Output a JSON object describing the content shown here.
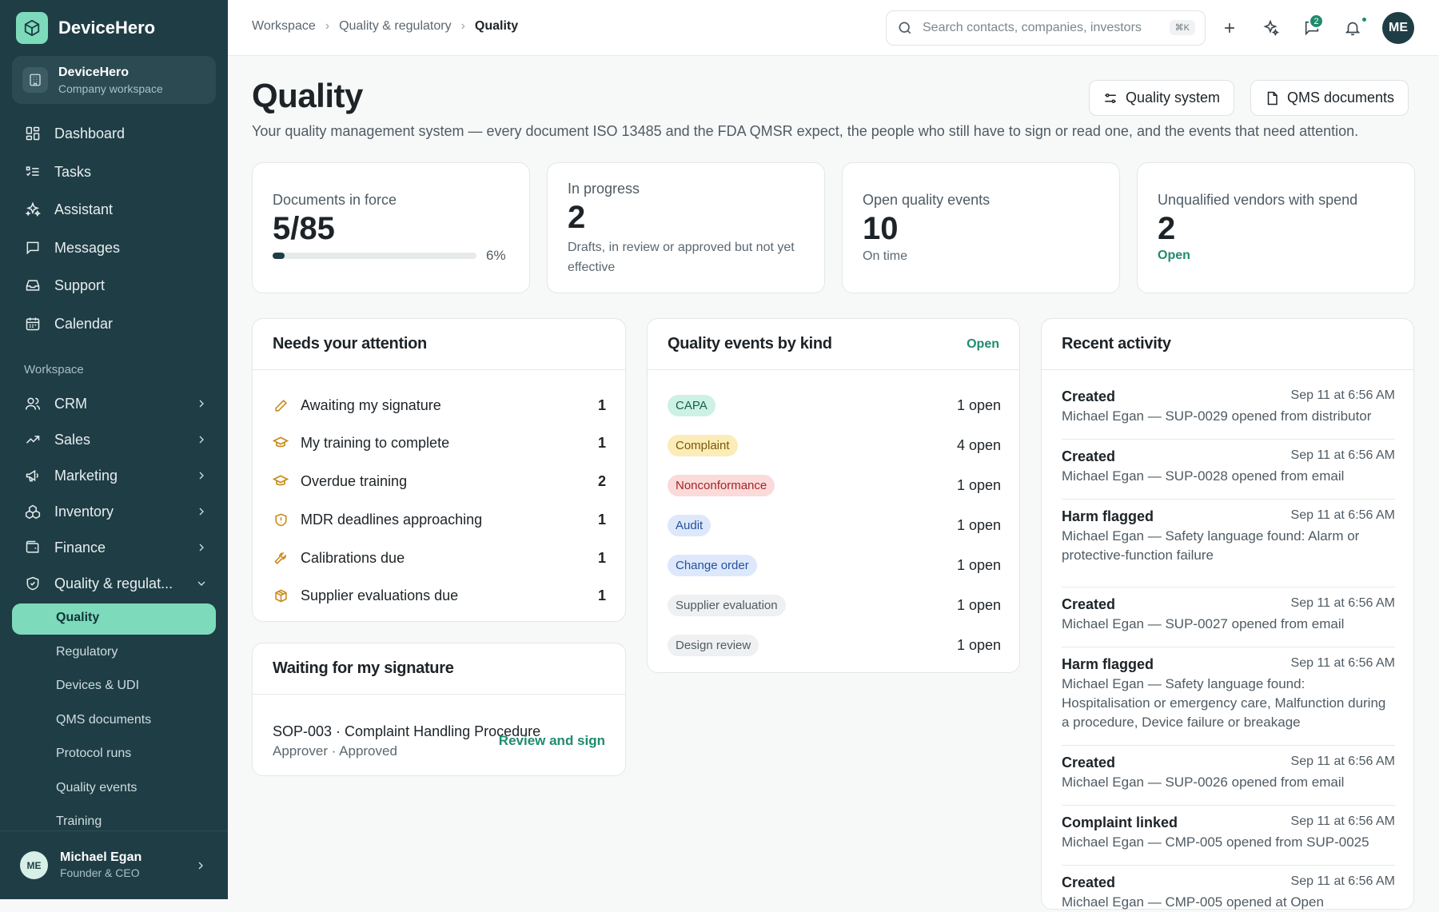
{
  "brand": {
    "name": "DeviceHero"
  },
  "workspace_card": {
    "name": "DeviceHero",
    "subtitle": "Company workspace"
  },
  "nav": {
    "main": [
      {
        "label": "Dashboard",
        "icon": "dashboard-icon"
      },
      {
        "label": "Tasks",
        "icon": "tasks-icon"
      },
      {
        "label": "Assistant",
        "icon": "sparkles-icon"
      },
      {
        "label": "Messages",
        "icon": "message-icon"
      },
      {
        "label": "Support",
        "icon": "inbox-icon"
      },
      {
        "label": "Calendar",
        "icon": "calendar-icon"
      }
    ],
    "section_label": "Workspace",
    "workspace": [
      {
        "label": "CRM",
        "icon": "users-icon"
      },
      {
        "label": "Sales",
        "icon": "trending-icon"
      },
      {
        "label": "Marketing",
        "icon": "megaphone-icon"
      },
      {
        "label": "Inventory",
        "icon": "boxes-icon"
      },
      {
        "label": "Finance",
        "icon": "wallet-icon"
      },
      {
        "label": "Quality & regulat...",
        "icon": "shield-icon"
      }
    ],
    "quality_sub": [
      {
        "label": "Quality",
        "active": true
      },
      {
        "label": "Regulatory"
      },
      {
        "label": "Devices & UDI"
      },
      {
        "label": "QMS documents"
      },
      {
        "label": "Protocol runs"
      },
      {
        "label": "Quality events"
      },
      {
        "label": "Training"
      }
    ]
  },
  "user": {
    "initials": "ME",
    "name": "Michael Egan",
    "role": "Founder & CEO"
  },
  "topbar": {
    "breadcrumb": [
      "Workspace",
      "Quality & regulatory",
      "Quality"
    ],
    "search_placeholder": "Search contacts, companies, investors",
    "search_shortcut": "⌘K",
    "messages_badge": "2",
    "avatar_initials": "ME"
  },
  "page": {
    "title": "Quality",
    "subtitle": "Your quality management system — every document ISO 13485 and the FDA QMSR expect, the people who still have to sign or read one, and the events that need attention.",
    "buttons": {
      "quality_system": "Quality system",
      "qms_documents": "QMS documents"
    }
  },
  "stats": {
    "documents": {
      "label": "Documents in force",
      "value": "5/85",
      "percent_label": "6%",
      "progress": 0.06
    },
    "in_progress": {
      "label": "In progress",
      "value": "2",
      "note": "Drafts, in review or approved but not yet effective"
    },
    "events": {
      "label": "Open quality events",
      "value": "10",
      "note": "On time"
    },
    "vendors": {
      "label": "Unqualified vendors with spend",
      "value": "2",
      "link": "Open"
    }
  },
  "attention": {
    "title": "Needs your attention",
    "items": [
      {
        "label": "Awaiting my signature",
        "count": "1",
        "icon": "pen-icon"
      },
      {
        "label": "My training to complete",
        "count": "1",
        "icon": "graduation-cap-icon"
      },
      {
        "label": "Overdue training",
        "count": "2",
        "icon": "graduation-cap-icon"
      },
      {
        "label": "MDR deadlines approaching",
        "count": "1",
        "icon": "shield-alert-icon"
      },
      {
        "label": "Calibrations due",
        "count": "1",
        "icon": "wrench-icon"
      },
      {
        "label": "Supplier evaluations due",
        "count": "1",
        "icon": "package-icon"
      }
    ],
    "accent_color": "#c98a1a"
  },
  "signature": {
    "title": "Waiting for my signature",
    "doc": "SOP-003 · Complaint Handling Procedure",
    "meta": "Approver · Approved",
    "action": "Review and sign"
  },
  "events_by_kind": {
    "title": "Quality events by kind",
    "link": "Open",
    "items": [
      {
        "kind": "CAPA",
        "open": "1 open",
        "bg": "#cdf1e4",
        "fg": "#14614c"
      },
      {
        "kind": "Complaint",
        "open": "4 open",
        "bg": "#fbecb8",
        "fg": "#7a5a06"
      },
      {
        "kind": "Nonconformance",
        "open": "1 open",
        "bg": "#fbdada",
        "fg": "#a32525"
      },
      {
        "kind": "Audit",
        "open": "1 open",
        "bg": "#dde8fb",
        "fg": "#25509c"
      },
      {
        "kind": "Change order",
        "open": "1 open",
        "bg": "#dde8fb",
        "fg": "#25509c"
      },
      {
        "kind": "Supplier evaluation",
        "open": "1 open",
        "bg": "#eef0f1",
        "fg": "#4f5b63"
      },
      {
        "kind": "Design review",
        "open": "1 open",
        "bg": "#eef0f1",
        "fg": "#4f5b63"
      }
    ]
  },
  "activity": {
    "title": "Recent activity",
    "items": [
      {
        "title": "Created",
        "time": "Sep 11 at 6:56 AM",
        "desc": "Michael Egan — SUP-0029 opened from distributor"
      },
      {
        "title": "Created",
        "time": "Sep 11 at 6:56 AM",
        "desc": "Michael Egan — SUP-0028 opened from email"
      },
      {
        "title": "Harm flagged",
        "time": "Sep 11 at 6:56 AM",
        "desc": "Michael Egan — Safety language found: Alarm or protective-function failure"
      },
      {
        "title": "Created",
        "time": "Sep 11 at 6:56 AM",
        "desc": "Michael Egan — SUP-0027 opened from email"
      },
      {
        "title": "Harm flagged",
        "time": "Sep 11 at 6:56 AM",
        "desc": "Michael Egan — Safety language found: Hospitalisation or emergency care, Malfunction during a procedure, Device failure or breakage"
      },
      {
        "title": "Created",
        "time": "Sep 11 at 6:56 AM",
        "desc": "Michael Egan — SUP-0026 opened from email"
      },
      {
        "title": "Complaint linked",
        "time": "Sep 11 at 6:56 AM",
        "desc": "Michael Egan — CMP-005 opened from SUP-0025"
      },
      {
        "title": "Created",
        "time": "Sep 11 at 6:56 AM",
        "desc": "Michael Egan — CMP-005 opened at Open"
      }
    ]
  },
  "colors": {
    "sidebar_bg": "#1f3d45",
    "accent": "#7ddbbb",
    "link": "#1f8b6f"
  }
}
